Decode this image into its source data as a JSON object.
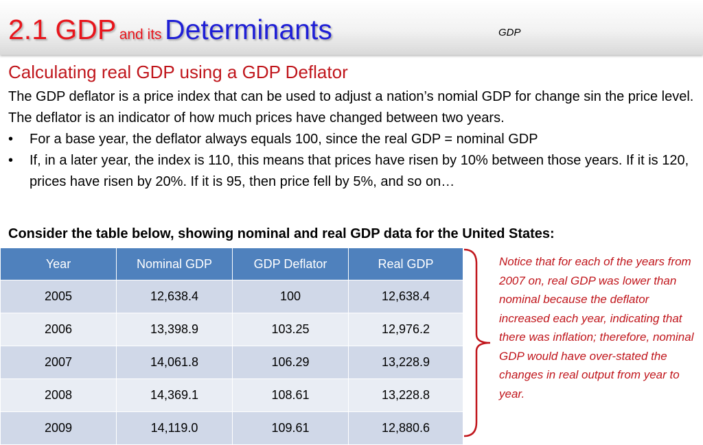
{
  "header": {
    "title_main": "2.1 GDP",
    "title_connector": "and its",
    "title_highlight": "Determinants",
    "tag": "GDP"
  },
  "section": {
    "subtitle": "Calculating real GDP using a GDP Deflator",
    "paragraph": "The GDP deflator is a price index that can be used to adjust a nation’s nomial GDP for change sin the price level. The deflator is an indicator of how much prices have changed between two years.",
    "bullets": [
      "For a base year, the deflator always equals 100, since the real GDP = nominal GDP",
      "If, in a later year, the index is 110, this means that prices have risen by 10% between those years. If it is 120, prices have risen by 20%. If it is 95, then price fell by 5%, and so on…"
    ],
    "bullet_symbol": "•",
    "table_intro": "Consider the table below, showing nominal and real GDP data for the United States:"
  },
  "table": {
    "headers": [
      "Year",
      "Nominal GDP",
      "GDP Deflator",
      "Real GDP"
    ],
    "rows": [
      [
        "2005",
        "12,638.4",
        "100",
        "12,638.4"
      ],
      [
        "2006",
        "13,398.9",
        "103.25",
        "12,976.2"
      ],
      [
        "2007",
        "14,061.8",
        "106.29",
        "13,228.9"
      ],
      [
        "2008",
        "14,369.1",
        "108.61",
        "13,228.8"
      ],
      [
        "2009",
        "14,119.0",
        "109.61",
        "12,880.6"
      ]
    ]
  },
  "note": "Notice that for each of the years from 2007 on, real GDP was lower than nominal because the deflator increased each year, indicating that there was inflation; therefore, nominal GDP would have over-stated the changes in real output from year to year.",
  "colors": {
    "title_red": "#e8141b",
    "title_blue": "#1f1fd6",
    "accent_red": "#c0151b",
    "table_header": "#4f81bd",
    "row_odd": "#d0d8e8",
    "row_even": "#e9edf4"
  }
}
